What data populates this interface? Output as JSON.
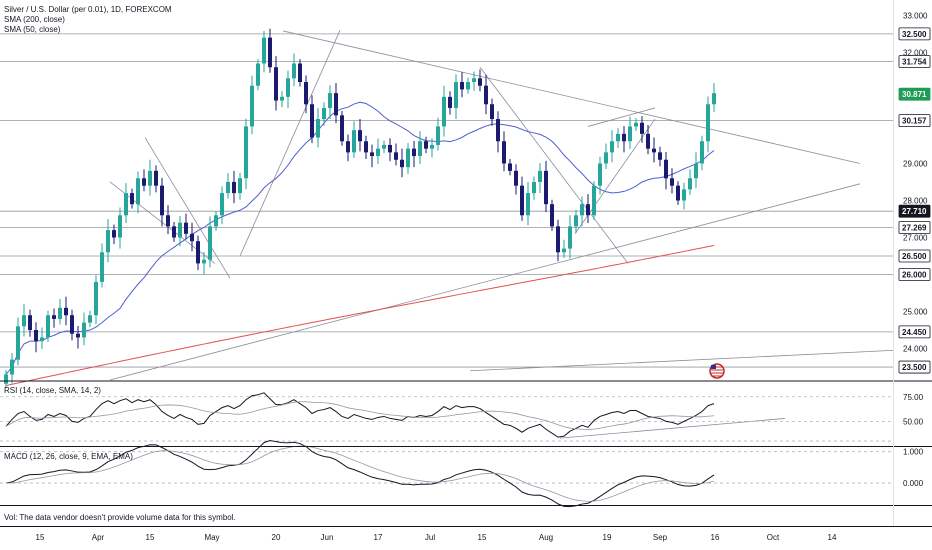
{
  "legend": {
    "symbol": "Silver / U.S. Dollar (per 0.01), 1D, FOREXCOM",
    "sma200": "SMA (200, close)",
    "sma50": "SMA (50, close)",
    "rsi": "RSI (14, close, SMA, 14, 2)",
    "macd": "MACD (12, 26, close, 9, EMA, EMA)",
    "volume_note": "Vol: The data vendor doesn't provide volume data for this symbol."
  },
  "colors": {
    "up": "#26a69a",
    "down": "#1a1a6e",
    "sma50": "#4c5fd5",
    "sma200": "#e05252",
    "trendline": "#8a8e99",
    "level": "#131722",
    "current_price_bg": "#1f9d55"
  },
  "chart_data": [
    {
      "type": "candlestick",
      "price_axis": {
        "ticks": [
          "33.000",
          "32.000",
          "29.000",
          "28.000",
          "27.000",
          "25.000",
          "24.000"
        ]
      },
      "price_labels": [
        {
          "value": 32.5,
          "text": "32.500",
          "style": "level"
        },
        {
          "value": 31.754,
          "text": "31.754",
          "style": "level"
        },
        {
          "value": 30.871,
          "text": "30.871",
          "style": "current"
        },
        {
          "value": 30.157,
          "text": "30.157",
          "style": "level"
        },
        {
          "value": 27.71,
          "text": "27.710",
          "style": "dark"
        },
        {
          "value": 27.269,
          "text": "27.269",
          "style": "level"
        },
        {
          "value": 26.5,
          "text": "26.500",
          "style": "level"
        },
        {
          "value": 26.0,
          "text": "26.000",
          "style": "level"
        },
        {
          "value": 24.45,
          "text": "24.450",
          "style": "level"
        },
        {
          "value": 23.5,
          "text": "23.500",
          "style": "level"
        }
      ],
      "time_axis": [
        "15",
        "Apr",
        "15",
        "May",
        "20",
        "Jun",
        "17",
        "Jul",
        "15",
        "Aug",
        "19",
        "Sep",
        "16",
        "Oct",
        "14"
      ],
      "close": [
        23.3,
        23.7,
        24.6,
        24.9,
        24.5,
        24.2,
        24.3,
        24.9,
        24.8,
        25.1,
        24.9,
        24.4,
        24.3,
        24.7,
        24.9,
        25.8,
        26.6,
        27.2,
        27.0,
        27.6,
        28.2,
        27.9,
        28.6,
        28.4,
        28.8,
        28.4,
        27.6,
        27.3,
        27.0,
        27.4,
        27.1,
        26.9,
        26.3,
        26.4,
        27.3,
        27.6,
        28.2,
        28.5,
        28.2,
        28.6,
        30.0,
        31.1,
        31.7,
        32.4,
        31.6,
        30.7,
        30.8,
        31.3,
        31.7,
        31.2,
        30.6,
        29.7,
        30.2,
        30.5,
        30.9,
        30.3,
        29.6,
        29.3,
        29.9,
        29.6,
        29.3,
        29.2,
        29.4,
        29.5,
        29.3,
        29.1,
        28.9,
        29.4,
        29.2,
        29.6,
        29.4,
        29.5,
        30.0,
        30.8,
        30.5,
        31.2,
        31.0,
        31.2,
        31.3,
        31.1,
        30.6,
        30.2,
        29.6,
        29.0,
        28.8,
        28.4,
        27.6,
        28.2,
        28.5,
        28.8,
        27.9,
        27.3,
        26.6,
        26.7,
        27.3,
        27.6,
        27.9,
        27.6,
        28.4,
        29.0,
        29.3,
        29.6,
        29.8,
        29.6,
        30.0,
        30.1,
        29.8,
        29.4,
        29.3,
        29.1,
        28.6,
        28.4,
        28.0,
        28.3,
        28.6,
        29.0,
        29.6,
        30.6,
        30.9
      ]
    },
    {
      "type": "line",
      "name": "RSI (14, close, SMA, 14, 2)",
      "y_ticks": [
        75.0,
        50.0
      ],
      "y_tick_labels": [
        "75.00",
        "50.00"
      ],
      "values": [
        45,
        52,
        58,
        60,
        55,
        51,
        52,
        57,
        55,
        58,
        56,
        50,
        49,
        53,
        55,
        62,
        68,
        71,
        68,
        71,
        73,
        69,
        72,
        70,
        72,
        67,
        60,
        56,
        53,
        57,
        54,
        52,
        47,
        48,
        56,
        60,
        64,
        66,
        63,
        66,
        72,
        76,
        77,
        79,
        73,
        67,
        67,
        69,
        72,
        68,
        64,
        58,
        61,
        62,
        64,
        60,
        55,
        53,
        57,
        55,
        53,
        52,
        54,
        55,
        53,
        52,
        51,
        55,
        54,
        56,
        55,
        56,
        60,
        65,
        62,
        66,
        64,
        65,
        65,
        63,
        59,
        55,
        51,
        47,
        46,
        43,
        39,
        43,
        45,
        47,
        42,
        38,
        34,
        35,
        40,
        43,
        46,
        44,
        51,
        55,
        57,
        59,
        60,
        58,
        61,
        61,
        58,
        55,
        54,
        53,
        50,
        49,
        47,
        50,
        53,
        56,
        60,
        66,
        68
      ]
    },
    {
      "type": "line",
      "name": "MACD (12, 26, close, 9, EMA, EMA)",
      "y_ticks": [
        1.0,
        0.0
      ],
      "y_tick_labels": [
        "1.000",
        "0.000"
      ]
    }
  ]
}
